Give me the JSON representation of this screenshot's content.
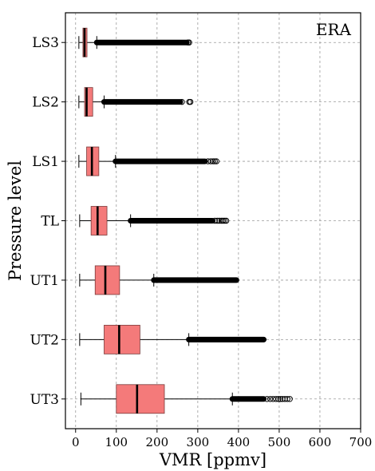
{
  "chart_data": {
    "type": "boxplot",
    "orientation": "horizontal",
    "panel_label": "ERA",
    "xlabel": "VMR [ppmv]",
    "ylabel": "Pressure level",
    "xlim": [
      -25,
      700
    ],
    "xticks": [
      0,
      100,
      200,
      300,
      400,
      500,
      600,
      700
    ],
    "grid": true,
    "box_color": "#f47a7a",
    "median_color": "#000000",
    "categories": [
      "LS3",
      "LS2",
      "LS1",
      "TL",
      "UT1",
      "UT2",
      "UT3"
    ],
    "boxes": [
      {
        "label": "LS3",
        "whisker_low": 8,
        "q1": 18,
        "median": 22,
        "q3": 28,
        "whisker_high": 52,
        "outlier_dense_end": 273,
        "outliers": [
          276,
          279
        ]
      },
      {
        "label": "LS2",
        "whisker_low": 8,
        "q1": 22,
        "median": 27,
        "q3": 42,
        "whisker_high": 70,
        "outlier_dense_end": 257,
        "outliers": [
          261,
          279,
          282
        ]
      },
      {
        "label": "LS1",
        "whisker_low": 8,
        "q1": 27,
        "median": 40,
        "q3": 57,
        "whisker_high": 98,
        "outlier_dense_end": 318,
        "outliers": [
          325,
          332,
          338,
          342,
          346
        ]
      },
      {
        "label": "TL",
        "whisker_low": 10,
        "q1": 38,
        "median": 54,
        "q3": 77,
        "whisker_high": 135,
        "outlier_dense_end": 336,
        "outliers": [
          342,
          348,
          353,
          358,
          362,
          366,
          370
        ]
      },
      {
        "label": "UT1",
        "whisker_low": 10,
        "q1": 48,
        "median": 73,
        "q3": 108,
        "whisker_high": 192,
        "outlier_dense_end": 395,
        "outliers": []
      },
      {
        "label": "UT2",
        "whisker_low": 10,
        "q1": 70,
        "median": 107,
        "q3": 158,
        "whisker_high": 278,
        "outlier_dense_end": 462,
        "outliers": []
      },
      {
        "label": "UT3",
        "whisker_low": 13,
        "q1": 100,
        "median": 151,
        "q3": 218,
        "whisker_high": 385,
        "outlier_dense_end": 462,
        "outliers": [
          470,
          478,
          485,
          492,
          498,
          503,
          508,
          514,
          520,
          526
        ]
      }
    ]
  }
}
